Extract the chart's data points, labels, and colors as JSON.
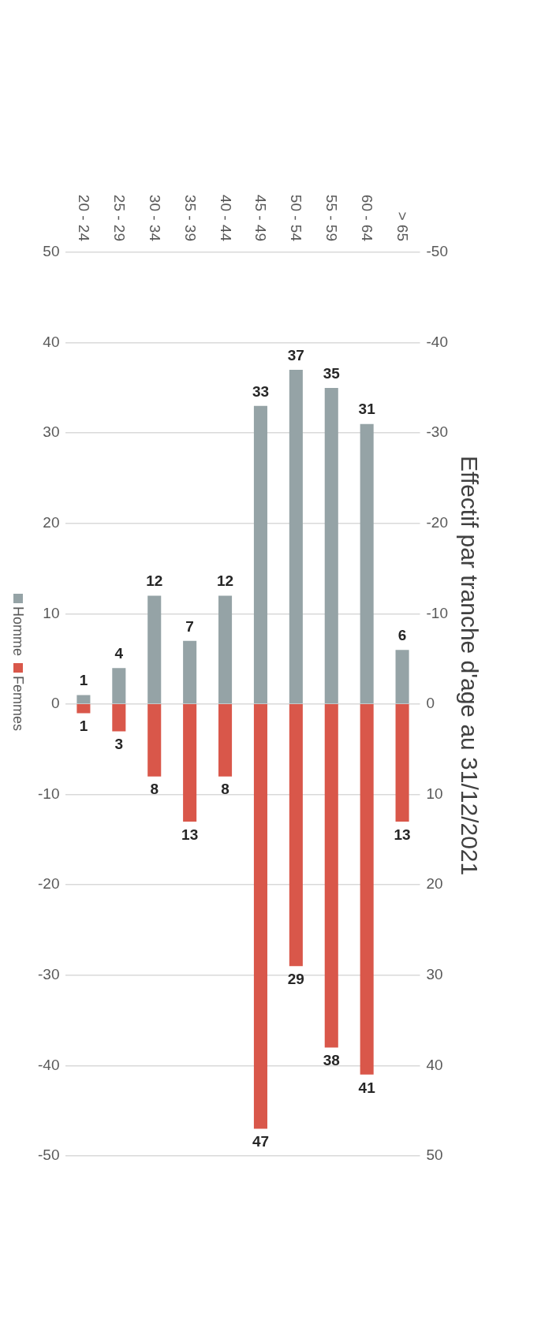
{
  "chart_data": {
    "type": "bar",
    "title": "Effectif par tranche d'age au 31/12/2021",
    "categories": [
      "20 - 24",
      "25 - 29",
      "30 - 34",
      "35 - 39",
      "40 - 44",
      "45 - 49",
      "50 - 54",
      "55 - 59",
      "60 - 64",
      "> 65"
    ],
    "ylim": [
      -50,
      50
    ],
    "yticks": [
      -50,
      -40,
      -30,
      -20,
      -10,
      0,
      10,
      20,
      30,
      40,
      50
    ],
    "y2lim": [
      50,
      -50
    ],
    "y2ticks": [
      50,
      40,
      30,
      20,
      10,
      0,
      -10,
      -20,
      -30,
      -40,
      -50
    ],
    "series": [
      {
        "name": "Homme",
        "color": "#95a3a6",
        "values": [
          1,
          4,
          12,
          7,
          12,
          33,
          37,
          35,
          31,
          6
        ]
      },
      {
        "name": "Femmes",
        "color": "#d9574a",
        "axis": "y2",
        "values": [
          1,
          3,
          8,
          13,
          8,
          47,
          29,
          38,
          41,
          13
        ]
      }
    ],
    "data_labels": true,
    "stacked": true,
    "grid": "y",
    "legend": "left"
  }
}
